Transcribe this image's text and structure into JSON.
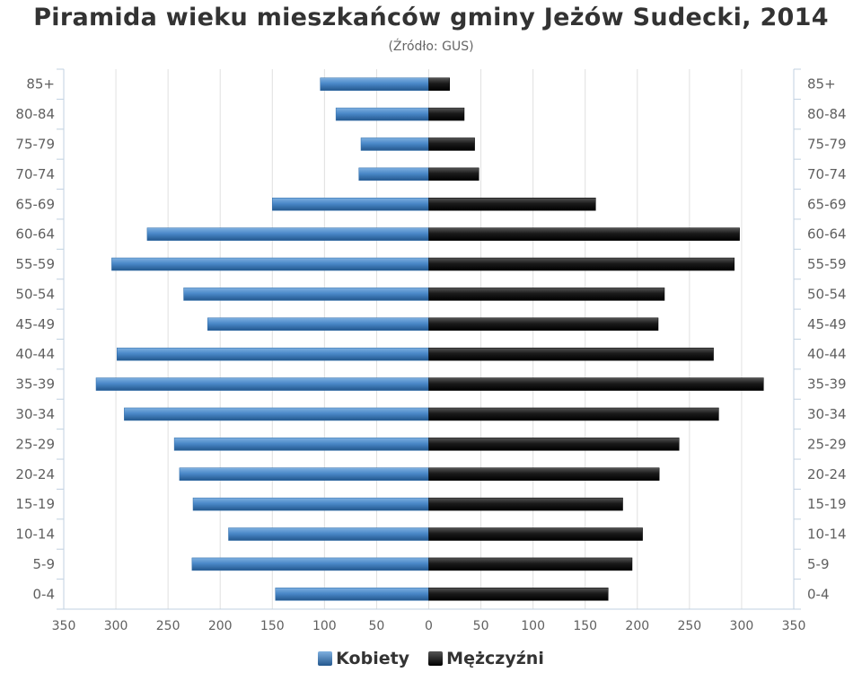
{
  "chart_data": {
    "type": "bar",
    "orientation": "horizontal-population-pyramid",
    "title": "Piramida wieku mieszkańców gminy Jeżów Sudecki, 2014",
    "subtitle": "(Źródło: GUS)",
    "categories": [
      "85+",
      "80-84",
      "75-79",
      "70-74",
      "65-69",
      "60-64",
      "55-59",
      "50-54",
      "45-49",
      "40-44",
      "35-39",
      "30-34",
      "25-29",
      "20-24",
      "15-19",
      "10-14",
      "5-9",
      "0-4"
    ],
    "series": [
      {
        "name": "Kobiety",
        "color": "#3a7cc0",
        "side": "left",
        "values": [
          104,
          89,
          65,
          67,
          150,
          270,
          304,
          235,
          212,
          299,
          319,
          292,
          244,
          239,
          226,
          192,
          227,
          147
        ]
      },
      {
        "name": "Mężczyźni",
        "color": "#111111",
        "side": "right",
        "values": [
          20,
          34,
          44,
          48,
          160,
          298,
          293,
          226,
          220,
          273,
          321,
          278,
          240,
          221,
          186,
          205,
          195,
          172
        ]
      }
    ],
    "xticks": [
      "350",
      "300",
      "250",
      "200",
      "150",
      "100",
      "50",
      "0",
      "50",
      "100",
      "150",
      "200",
      "250",
      "300",
      "350"
    ],
    "xlim": [
      -350,
      350
    ],
    "grid": true,
    "legend": "bottom-center"
  }
}
